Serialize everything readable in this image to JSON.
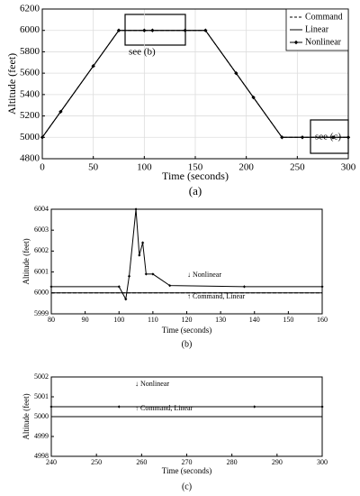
{
  "chart_data": [
    {
      "type": "line",
      "caption": "(a)",
      "xlabel": "Time (seconds)",
      "ylabel": "Altitude (feet)",
      "xlim": [
        0,
        300
      ],
      "xticks": [
        0,
        50,
        100,
        150,
        200,
        250,
        300
      ],
      "ylim": [
        4800,
        6200
      ],
      "yticks": [
        4800,
        5000,
        5200,
        5400,
        5600,
        5800,
        6000,
        6200
      ],
      "grid": true,
      "legend": "upper right",
      "annotations": [
        "see (b)",
        "see (c)"
      ],
      "series": [
        {
          "name": "Command",
          "color": "#000000",
          "dash": true,
          "marker": false,
          "x": [
            0,
            75,
            160,
            235,
            300
          ],
          "values": [
            5000,
            6000,
            6000,
            5000,
            5000
          ]
        },
        {
          "name": "Linear",
          "color": "#000000",
          "dash": false,
          "marker": false,
          "x": [
            0,
            75,
            160,
            235,
            300
          ],
          "values": [
            5000,
            6000,
            6000,
            5000,
            5000
          ]
        },
        {
          "name": "Nonlinear",
          "color": "#000000",
          "dash": false,
          "marker": true,
          "x": [
            0,
            18,
            50,
            75,
            100,
            108,
            140,
            160,
            190,
            207,
            235,
            255,
            285,
            300
          ],
          "values": [
            5000,
            5240,
            5667,
            6000,
            6000,
            6000,
            6000,
            6000,
            5600,
            5373,
            5000,
            5000,
            5000,
            5000
          ]
        }
      ]
    },
    {
      "type": "line",
      "caption": "(b)",
      "xlabel": "Time (seconds)",
      "ylabel": "Altitude (feet)",
      "xlim": [
        80,
        160
      ],
      "xticks": [
        80,
        90,
        100,
        110,
        120,
        130,
        140,
        150,
        160
      ],
      "ylim": [
        5999,
        6004
      ],
      "yticks": [
        5999,
        6000,
        6001,
        6002,
        6003,
        6004
      ],
      "grid": false,
      "annotations": [
        "↓ Nonlinear",
        "↑ Command, Linear"
      ],
      "series": [
        {
          "name": "Command",
          "color": "#000000",
          "dash": true,
          "marker": false,
          "x": [
            80,
            160
          ],
          "values": [
            6000,
            6000
          ]
        },
        {
          "name": "Linear",
          "color": "#000000",
          "dash": false,
          "marker": false,
          "x": [
            80,
            160
          ],
          "values": [
            6000,
            6000
          ]
        },
        {
          "name": "Nonlinear",
          "color": "#000000",
          "dash": false,
          "marker": true,
          "x": [
            80,
            100,
            102,
            103,
            105,
            106,
            107,
            108,
            110,
            115,
            137,
            160
          ],
          "values": [
            6000.3,
            6000.3,
            5999.7,
            6000.8,
            6004,
            6001.8,
            6002.4,
            6000.9,
            6000.9,
            6000.35,
            6000.3,
            6000.3
          ]
        }
      ]
    },
    {
      "type": "line",
      "caption": "(c)",
      "xlabel": "Time (seconds)",
      "ylabel": "Altitude (feet)",
      "xlim": [
        240,
        300
      ],
      "xticks": [
        240,
        250,
        260,
        270,
        280,
        290,
        300
      ],
      "ylim": [
        4998,
        5002
      ],
      "yticks": [
        4998,
        4999,
        5000,
        5001,
        5002
      ],
      "grid": false,
      "annotations": [
        "↓ Nonlinear",
        "↑ Command, Linear"
      ],
      "series": [
        {
          "name": "Command",
          "color": "#000000",
          "dash": true,
          "marker": false,
          "x": [
            240,
            300
          ],
          "values": [
            5000,
            5000
          ]
        },
        {
          "name": "Linear",
          "color": "#000000",
          "dash": false,
          "marker": false,
          "x": [
            240,
            300
          ],
          "values": [
            5000,
            5000
          ]
        },
        {
          "name": "Nonlinear",
          "color": "#000000",
          "dash": false,
          "marker": true,
          "x": [
            240,
            255,
            285,
            300
          ],
          "values": [
            5000.5,
            5000.5,
            5000.5,
            5000.5
          ]
        }
      ]
    }
  ]
}
